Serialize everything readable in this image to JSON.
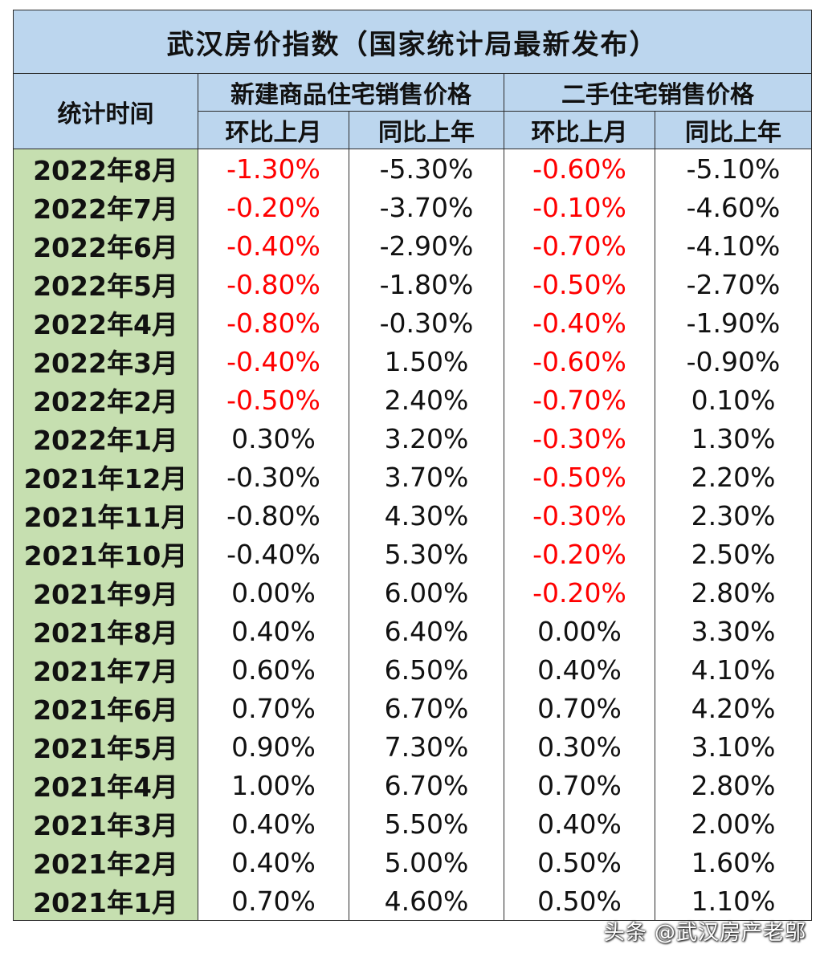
{
  "chart_data": {
    "type": "table",
    "title": "武汉房价指数（国家统计局最新发布）",
    "headers": {
      "date_col": "统计时间",
      "group_new": "新建商品住宅销售价格",
      "group_second": "二手住宅销售价格",
      "mom": "环比上月",
      "yoy": "同比上年"
    },
    "rows": [
      {
        "date": "2022年8月",
        "new_mom": "-1.30%",
        "new_yoy": "-5.30%",
        "sec_mom": "-0.60%",
        "sec_yoy": "-5.10%"
      },
      {
        "date": "2022年7月",
        "new_mom": "-0.20%",
        "new_yoy": "-3.70%",
        "sec_mom": "-0.10%",
        "sec_yoy": "-4.60%"
      },
      {
        "date": "2022年6月",
        "new_mom": "-0.40%",
        "new_yoy": "-2.90%",
        "sec_mom": "-0.70%",
        "sec_yoy": "-4.10%"
      },
      {
        "date": "2022年5月",
        "new_mom": "-0.80%",
        "new_yoy": "-1.80%",
        "sec_mom": "-0.50%",
        "sec_yoy": "-2.70%"
      },
      {
        "date": "2022年4月",
        "new_mom": "-0.80%",
        "new_yoy": "-0.30%",
        "sec_mom": "-0.40%",
        "sec_yoy": "-1.90%"
      },
      {
        "date": "2022年3月",
        "new_mom": "-0.40%",
        "new_yoy": "1.50%",
        "sec_mom": "-0.60%",
        "sec_yoy": "-0.90%"
      },
      {
        "date": "2022年2月",
        "new_mom": "-0.50%",
        "new_yoy": "2.40%",
        "sec_mom": "-0.70%",
        "sec_yoy": "0.10%"
      },
      {
        "date": "2022年1月",
        "new_mom": "0.30%",
        "new_yoy": "3.20%",
        "sec_mom": "-0.30%",
        "sec_yoy": "1.30%"
      },
      {
        "date": "2021年12月",
        "new_mom": "-0.30%",
        "new_yoy": "3.70%",
        "sec_mom": "-0.50%",
        "sec_yoy": "2.20%"
      },
      {
        "date": "2021年11月",
        "new_mom": "-0.80%",
        "new_yoy": "4.30%",
        "sec_mom": "-0.30%",
        "sec_yoy": "2.30%"
      },
      {
        "date": "2021年10月",
        "new_mom": "-0.40%",
        "new_yoy": "5.30%",
        "sec_mom": "-0.20%",
        "sec_yoy": "2.50%"
      },
      {
        "date": "2021年9月",
        "new_mom": "0.00%",
        "new_yoy": "6.00%",
        "sec_mom": "-0.20%",
        "sec_yoy": "2.80%"
      },
      {
        "date": "2021年8月",
        "new_mom": "0.40%",
        "new_yoy": "6.40%",
        "sec_mom": "0.00%",
        "sec_yoy": "3.30%"
      },
      {
        "date": "2021年7月",
        "new_mom": "0.60%",
        "new_yoy": "6.50%",
        "sec_mom": "0.40%",
        "sec_yoy": "4.10%"
      },
      {
        "date": "2021年6月",
        "new_mom": "0.70%",
        "new_yoy": "6.70%",
        "sec_mom": "0.70%",
        "sec_yoy": "4.20%"
      },
      {
        "date": "2021年5月",
        "new_mom": "0.90%",
        "new_yoy": "7.30%",
        "sec_mom": "0.30%",
        "sec_yoy": "3.10%"
      },
      {
        "date": "2021年4月",
        "new_mom": "1.00%",
        "new_yoy": "6.70%",
        "sec_mom": "0.70%",
        "sec_yoy": "2.80%"
      },
      {
        "date": "2021年3月",
        "new_mom": "0.40%",
        "new_yoy": "5.50%",
        "sec_mom": "0.40%",
        "sec_yoy": "2.00%"
      },
      {
        "date": "2021年2月",
        "new_mom": "0.40%",
        "new_yoy": "5.00%",
        "sec_mom": "0.50%",
        "sec_yoy": "1.60%"
      },
      {
        "date": "2021年1月",
        "new_mom": "0.70%",
        "new_yoy": "4.60%",
        "sec_mom": "0.50%",
        "sec_yoy": "1.10%"
      }
    ],
    "red_columns": [
      "new_mom_2022_jan_to_aug_negative",
      "sec_mom_negative"
    ],
    "colors": {
      "header_bg": "#bcd6ee",
      "date_bg": "#c6dfb0",
      "negative_highlight": "#ff0000",
      "text": "#111111"
    }
  },
  "watermark": "头条 @武汉房产老邬"
}
